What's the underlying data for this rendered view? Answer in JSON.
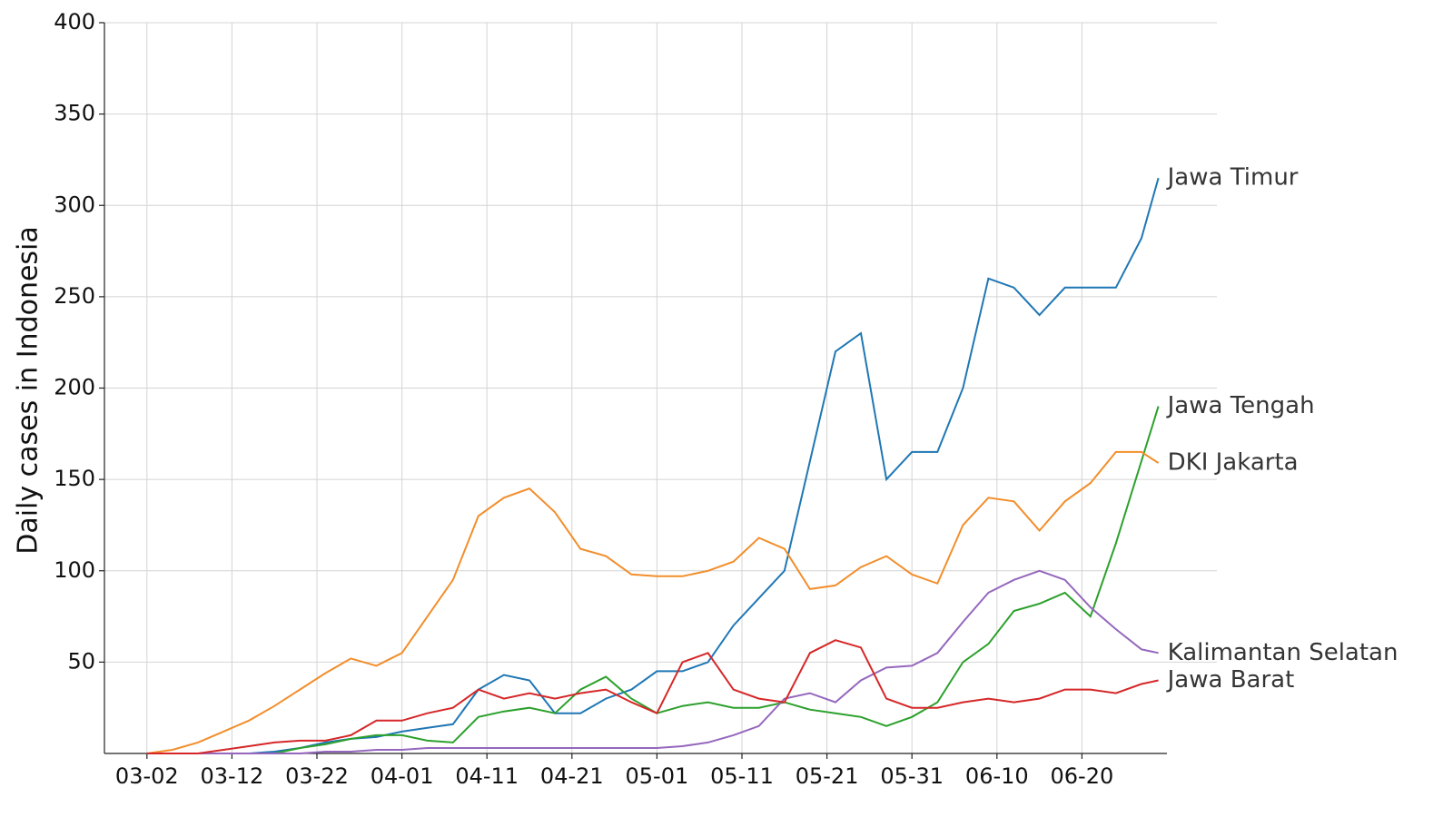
{
  "chart_data": {
    "type": "line",
    "y_label": "Daily cases in Indonesia",
    "x": [
      "03-02",
      "03-05",
      "03-08",
      "03-11",
      "03-14",
      "03-17",
      "03-20",
      "03-23",
      "03-26",
      "03-29",
      "04-01",
      "04-04",
      "04-07",
      "04-10",
      "04-13",
      "04-16",
      "04-19",
      "04-22",
      "04-25",
      "04-28",
      "05-01",
      "05-04",
      "05-07",
      "05-10",
      "05-13",
      "05-16",
      "05-19",
      "05-22",
      "05-25",
      "05-28",
      "05-31",
      "06-03",
      "06-06",
      "06-09",
      "06-12",
      "06-15",
      "06-18",
      "06-21",
      "06-24",
      "06-27",
      "06-29"
    ],
    "xlim": [
      "02-26",
      "06-30"
    ],
    "xticks": [
      "03-02",
      "03-12",
      "03-22",
      "04-01",
      "04-11",
      "04-21",
      "05-01",
      "05-11",
      "05-21",
      "05-31",
      "06-10",
      "06-20"
    ],
    "ylim": [
      0,
      400
    ],
    "yticks": [
      50,
      100,
      150,
      200,
      250,
      300,
      350,
      400
    ],
    "grid": true,
    "series": [
      {
        "name": "Jawa Timur",
        "color": "#1f77b4",
        "values": [
          0,
          0,
          0,
          0,
          0,
          1,
          3,
          6,
          8,
          9,
          12,
          14,
          16,
          35,
          43,
          40,
          22,
          22,
          30,
          35,
          45,
          45,
          50,
          70,
          85,
          100,
          160,
          220,
          230,
          150,
          165,
          165,
          200,
          260,
          255,
          240,
          255,
          255,
          255,
          282,
          315
        ]
      },
      {
        "name": "Jawa Tengah",
        "color": "#2ca02c",
        "values": [
          0,
          0,
          0,
          0,
          0,
          0,
          3,
          5,
          8,
          10,
          10,
          7,
          6,
          20,
          23,
          25,
          22,
          35,
          42,
          30,
          22,
          26,
          28,
          25,
          25,
          28,
          24,
          22,
          20,
          15,
          20,
          28,
          50,
          60,
          78,
          82,
          88,
          75,
          115,
          160,
          190
        ]
      },
      {
        "name": "DKI Jakarta",
        "color": "#f28e2b",
        "values": [
          0,
          2,
          6,
          12,
          18,
          26,
          35,
          44,
          52,
          48,
          55,
          75,
          95,
          130,
          140,
          145,
          132,
          112,
          108,
          98,
          97,
          97,
          100,
          105,
          118,
          112,
          90,
          92,
          102,
          108,
          98,
          93,
          125,
          140,
          138,
          122,
          138,
          148,
          165,
          165,
          159
        ]
      },
      {
        "name": "Kalimantan Selatan",
        "color": "#9467bd",
        "values": [
          0,
          0,
          0,
          0,
          0,
          0,
          0,
          1,
          1,
          2,
          2,
          3,
          3,
          3,
          3,
          3,
          3,
          3,
          3,
          3,
          3,
          4,
          6,
          10,
          15,
          30,
          33,
          28,
          40,
          47,
          48,
          55,
          72,
          88,
          95,
          100,
          95,
          80,
          68,
          57,
          55
        ]
      },
      {
        "name": "Jawa Barat",
        "color": "#d62728",
        "values": [
          0,
          0,
          0,
          2,
          4,
          6,
          7,
          7,
          10,
          18,
          18,
          22,
          25,
          35,
          30,
          33,
          30,
          33,
          35,
          28,
          22,
          50,
          55,
          35,
          30,
          28,
          55,
          62,
          58,
          30,
          25,
          25,
          28,
          30,
          28,
          30,
          35,
          35,
          33,
          38,
          40
        ]
      }
    ]
  }
}
